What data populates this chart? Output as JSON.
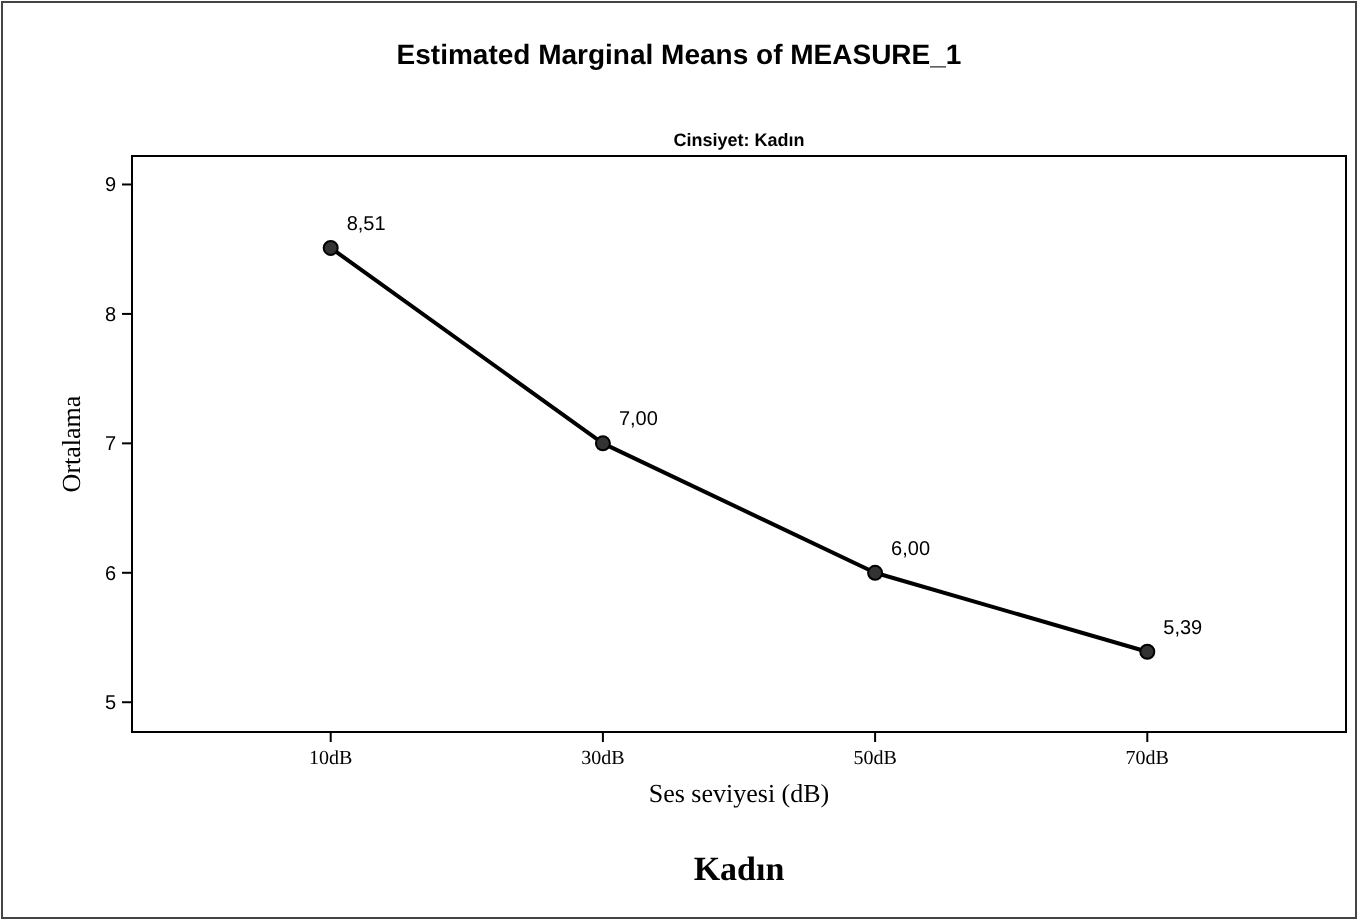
{
  "chart_data": {
    "type": "line",
    "title": "Estimated Marginal Means of MEASURE_1",
    "subtitle": "Cinsiyet: Kadın",
    "xlabel": "Ses seviyesi (dB)",
    "ylabel": "Ortalama",
    "annotations": [
      "Kadın"
    ],
    "categories": [
      "10dB",
      "30dB",
      "50dB",
      "70dB"
    ],
    "series": [
      {
        "color": "#000000",
        "values": [
          8.51,
          7.0,
          6.0,
          5.39
        ],
        "value_labels": [
          "8,51",
          "7,00",
          "6,00",
          "5,39"
        ]
      }
    ],
    "ylim": [
      4.77,
      9.22
    ],
    "yticks": [
      5,
      6,
      7,
      8,
      9
    ],
    "grid": false,
    "marker": "circle",
    "line_style": "solid"
  }
}
